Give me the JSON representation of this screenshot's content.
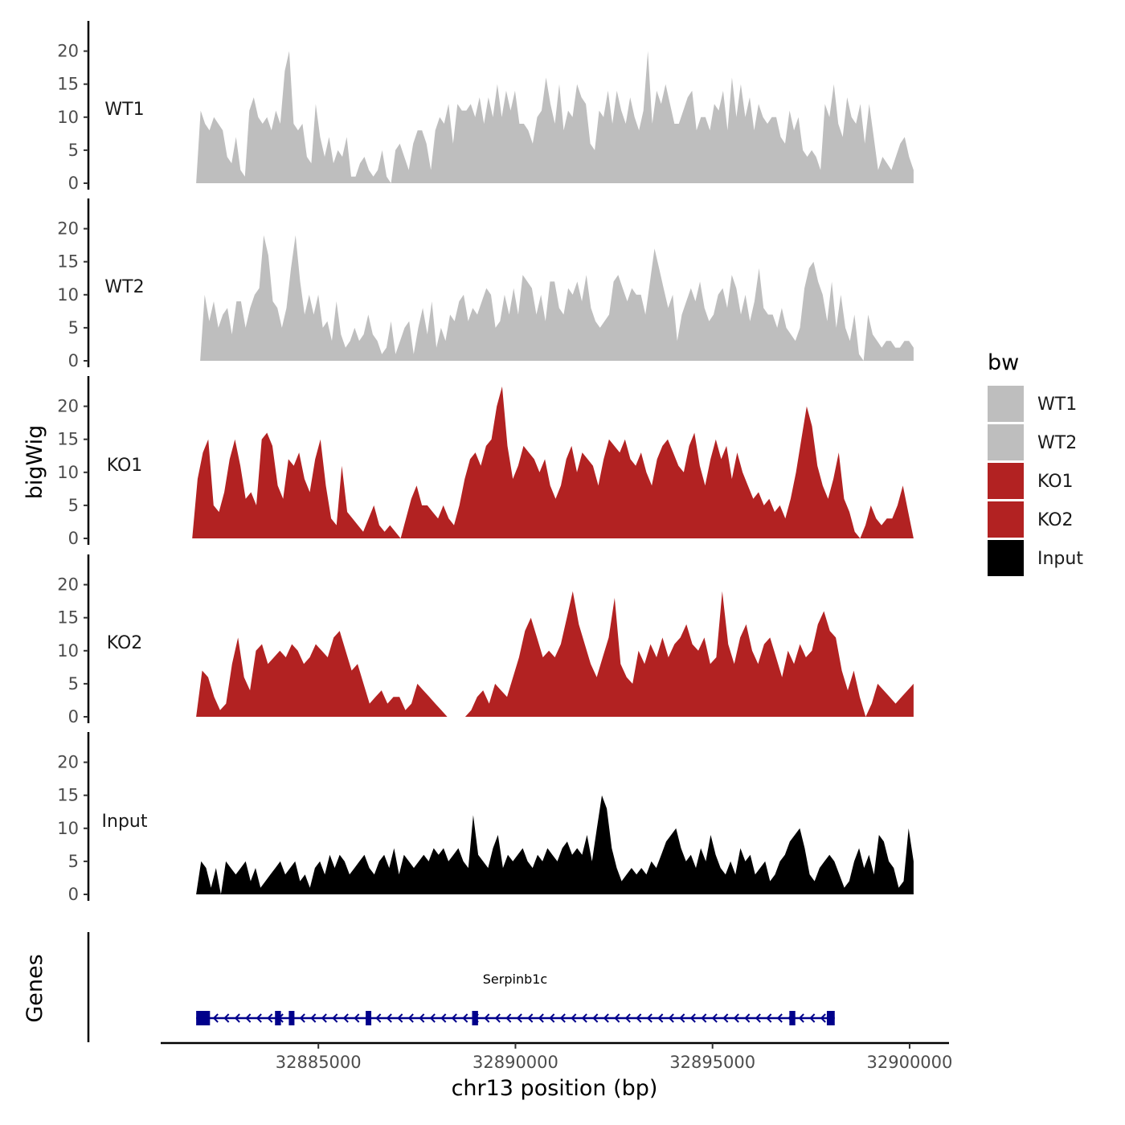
{
  "chart_data": {
    "type": "area",
    "title": "",
    "ylabel": "bigWig",
    "xlabel": "chr13 position (bp)",
    "ylim": [
      0,
      24
    ],
    "y_ticks": [
      "0",
      "5",
      "10",
      "15",
      "20"
    ],
    "xlim": [
      32881000,
      32901000
    ],
    "x_ticks": [
      {
        "value": 32885000,
        "label": "32885000"
      },
      {
        "value": 32890000,
        "label": "32890000"
      },
      {
        "value": 32895000,
        "label": "32895000"
      },
      {
        "value": 32900000,
        "label": "32900000"
      }
    ],
    "legend": {
      "title": "bw",
      "position": "right",
      "items": [
        {
          "label": "WT1",
          "color": "#bebebe"
        },
        {
          "label": "WT2",
          "color": "#bebebe"
        },
        {
          "label": "KO1",
          "color": "#b22222"
        },
        {
          "label": "KO2",
          "color": "#b22222"
        },
        {
          "label": "Input",
          "color": "#000000"
        }
      ]
    },
    "series": [
      {
        "name": "WT1",
        "color": "#bebebe",
        "x_start": 32881900,
        "x_end": 32900100,
        "values": [
          0,
          11,
          9,
          8,
          10,
          9,
          8,
          4,
          3,
          7,
          2,
          1,
          11,
          13,
          10,
          9,
          10,
          8,
          11,
          9,
          17,
          20,
          9,
          8,
          9,
          4,
          3,
          12,
          7,
          4,
          7,
          3,
          5,
          4,
          7,
          1,
          1,
          3,
          4,
          2,
          1,
          2,
          5,
          1,
          0,
          5,
          6,
          4,
          2,
          6,
          8,
          8,
          6,
          2,
          8,
          10,
          9,
          12,
          6,
          12,
          11,
          11,
          12,
          10,
          13,
          9,
          13,
          10,
          15,
          10,
          14,
          11,
          14,
          9,
          9,
          8,
          6,
          10,
          11,
          16,
          12,
          9,
          15,
          8,
          11,
          10,
          15,
          13,
          12,
          6,
          5,
          11,
          10,
          14,
          9,
          14,
          11,
          9,
          13,
          10,
          8,
          11,
          20,
          9,
          14,
          12,
          15,
          12,
          9,
          9,
          11,
          13,
          14,
          8,
          10,
          10,
          8,
          12,
          11,
          14,
          8,
          16,
          10,
          15,
          10,
          13,
          8,
          12,
          10,
          9,
          10,
          10,
          7,
          6,
          11,
          8,
          10,
          5,
          4,
          5,
          4,
          2,
          12,
          10,
          15,
          9,
          7,
          13,
          10,
          9,
          12,
          6,
          12,
          7,
          2,
          4,
          3,
          2,
          4,
          6,
          7,
          4,
          2
        ]
      },
      {
        "name": "WT2",
        "color": "#bebebe",
        "x_start": 32882000,
        "x_end": 32900100,
        "values": [
          0,
          10,
          6,
          9,
          5,
          7,
          8,
          4,
          9,
          9,
          5,
          8,
          10,
          11,
          19,
          16,
          9,
          8,
          5,
          8,
          14,
          19,
          12,
          7,
          10,
          7,
          10,
          5,
          6,
          3,
          9,
          4,
          2,
          3,
          5,
          3,
          4,
          7,
          4,
          3,
          1,
          2,
          6,
          1,
          3,
          5,
          6,
          1,
          5,
          8,
          4,
          9,
          2,
          5,
          3,
          7,
          6,
          9,
          10,
          6,
          8,
          7,
          9,
          11,
          10,
          5,
          6,
          10,
          7,
          11,
          7,
          13,
          12,
          11,
          7,
          10,
          6,
          12,
          12,
          8,
          7,
          11,
          10,
          12,
          9,
          13,
          8,
          6,
          5,
          6,
          7,
          12,
          13,
          11,
          9,
          11,
          10,
          10,
          7,
          12,
          17,
          14,
          11,
          8,
          10,
          3,
          7,
          9,
          11,
          9,
          12,
          8,
          6,
          7,
          10,
          11,
          8,
          13,
          11,
          7,
          10,
          6,
          9,
          14,
          8,
          7,
          7,
          5,
          8,
          5,
          4,
          3,
          5,
          11,
          14,
          15,
          12,
          10,
          6,
          12,
          5,
          10,
          5,
          3,
          7,
          1,
          0,
          7,
          4,
          3,
          2,
          3,
          3,
          2,
          2,
          3,
          3,
          2
        ]
      },
      {
        "name": "KO1",
        "color": "#b22222",
        "x_start": 32881800,
        "x_end": 32900100,
        "values": [
          0,
          9,
          13,
          15,
          5,
          4,
          7,
          12,
          15,
          11,
          6,
          7,
          5,
          15,
          16,
          14,
          8,
          6,
          12,
          11,
          13,
          9,
          7,
          12,
          15,
          8,
          3,
          2,
          11,
          4,
          3,
          2,
          1,
          3,
          5,
          2,
          1,
          2,
          1,
          0,
          3,
          6,
          8,
          5,
          5,
          4,
          3,
          5,
          3,
          2,
          5,
          9,
          12,
          13,
          11,
          14,
          15,
          20,
          23,
          14,
          9,
          11,
          14,
          13,
          12,
          10,
          12,
          8,
          6,
          8,
          12,
          14,
          10,
          13,
          12,
          11,
          8,
          12,
          15,
          14,
          13,
          15,
          12,
          11,
          13,
          10,
          8,
          12,
          14,
          15,
          13,
          11,
          10,
          14,
          16,
          11,
          8,
          12,
          15,
          12,
          14,
          9,
          13,
          10,
          8,
          6,
          7,
          5,
          6,
          4,
          5,
          3,
          6,
          10,
          15,
          20,
          17,
          11,
          8,
          6,
          9,
          13,
          6,
          4,
          1,
          0,
          2,
          5,
          3,
          2,
          3,
          3,
          5,
          8,
          4,
          0
        ]
      },
      {
        "name": "KO2",
        "color": "#b22222",
        "x_start": 32881900,
        "x_end": 32900100,
        "values": [
          0,
          7,
          6,
          3,
          1,
          2,
          8,
          12,
          6,
          4,
          10,
          11,
          8,
          9,
          10,
          9,
          11,
          10,
          8,
          9,
          11,
          10,
          9,
          12,
          13,
          10,
          7,
          8,
          5,
          2,
          3,
          4,
          2,
          3,
          3,
          1,
          2,
          5,
          4,
          3,
          2,
          1,
          0,
          0,
          0,
          0,
          1,
          3,
          4,
          2,
          5,
          4,
          3,
          6,
          9,
          13,
          15,
          12,
          9,
          10,
          9,
          11,
          15,
          19,
          14,
          11,
          8,
          6,
          9,
          12,
          18,
          8,
          6,
          5,
          10,
          8,
          11,
          9,
          12,
          9,
          11,
          12,
          14,
          11,
          10,
          12,
          8,
          9,
          19,
          11,
          8,
          12,
          14,
          10,
          8,
          11,
          12,
          9,
          6,
          10,
          8,
          11,
          9,
          10,
          14,
          16,
          13,
          12,
          7,
          4,
          7,
          3,
          0,
          2,
          5,
          4,
          3,
          2,
          3,
          4,
          5
        ]
      },
      {
        "name": "Input",
        "color": "#000000",
        "x_start": 32881900,
        "x_end": 32900100,
        "values": [
          0,
          5,
          4,
          1,
          4,
          0,
          5,
          4,
          3,
          4,
          5,
          2,
          4,
          1,
          2,
          3,
          4,
          5,
          3,
          4,
          5,
          2,
          3,
          1,
          4,
          5,
          3,
          6,
          4,
          6,
          5,
          3,
          4,
          5,
          6,
          4,
          3,
          5,
          6,
          4,
          7,
          3,
          6,
          5,
          4,
          5,
          6,
          5,
          7,
          6,
          7,
          5,
          6,
          7,
          5,
          4,
          12,
          6,
          5,
          4,
          7,
          9,
          4,
          6,
          5,
          6,
          7,
          5,
          4,
          6,
          5,
          7,
          6,
          5,
          7,
          8,
          6,
          7,
          6,
          9,
          5,
          10,
          15,
          13,
          7,
          4,
          2,
          3,
          4,
          3,
          4,
          3,
          5,
          4,
          6,
          8,
          9,
          10,
          7,
          5,
          6,
          4,
          7,
          5,
          9,
          6,
          4,
          3,
          5,
          3,
          7,
          5,
          6,
          3,
          4,
          5,
          2,
          3,
          5,
          6,
          8,
          9,
          10,
          7,
          3,
          2,
          4,
          5,
          6,
          5,
          3,
          1,
          2,
          5,
          7,
          4,
          6,
          3,
          9,
          8,
          5,
          4,
          1,
          2,
          10,
          5
        ]
      }
    ],
    "gene_track": {
      "label": "Genes",
      "genes": [
        {
          "name": "Serpinb1c",
          "start": 32881900,
          "end": 32898100,
          "strand": "-",
          "exons": [
            [
              32881900,
              32882250
            ],
            [
              32883900,
              32884050
            ],
            [
              32884250,
              32884350
            ],
            [
              32886200,
              32886300
            ],
            [
              32888900,
              32889050
            ],
            [
              32896950,
              32897100
            ],
            [
              32897900,
              32898100
            ]
          ]
        }
      ]
    }
  }
}
